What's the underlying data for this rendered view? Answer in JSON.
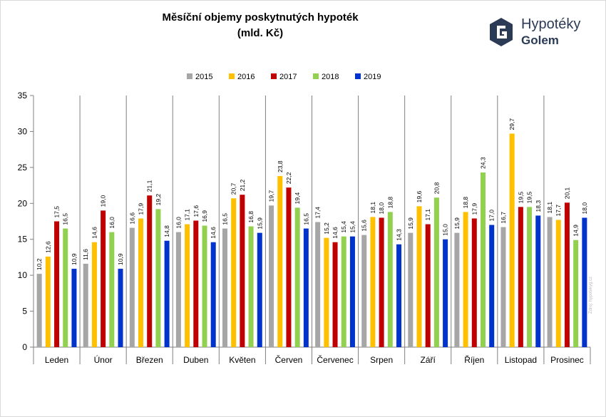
{
  "title_line1": "Měsíční objemy poskytnutých hypoték",
  "title_line2": "(mld. Kč)",
  "logo": {
    "line1": "Hypotéky",
    "line2": "Golem",
    "icon": "golem-g-logo-icon",
    "color": "#2b3a55"
  },
  "source_note": "Zdroj: hypotekyg.cz",
  "chart_data": {
    "type": "bar",
    "categories": [
      "Leden",
      "Únor",
      "Březen",
      "Duben",
      "Květen",
      "Červen",
      "Červenec",
      "Srpen",
      "Září",
      "Říjen",
      "Listopad",
      "Prosinec"
    ],
    "series": [
      {
        "name": "2015",
        "color": "#a6a6a6",
        "values": [
          10.2,
          11.6,
          16.6,
          16.0,
          16.5,
          19.7,
          17.4,
          15.6,
          15.9,
          15.9,
          16.7,
          18.1
        ]
      },
      {
        "name": "2016",
        "color": "#ffc000",
        "values": [
          12.6,
          14.6,
          17.9,
          17.1,
          20.7,
          23.8,
          15.2,
          18.1,
          19.6,
          18.8,
          29.7,
          17.7
        ]
      },
      {
        "name": "2017",
        "color": "#c00000",
        "values": [
          17.5,
          19.0,
          21.1,
          17.6,
          21.2,
          22.2,
          14.6,
          18.0,
          17.1,
          17.9,
          19.5,
          20.1
        ]
      },
      {
        "name": "2018",
        "color": "#92d050",
        "values": [
          16.5,
          16.0,
          19.2,
          16.9,
          16.8,
          19.4,
          15.4,
          18.8,
          20.8,
          24.3,
          19.5,
          14.9
        ]
      },
      {
        "name": "2019",
        "color": "#0033cc",
        "values": [
          10.9,
          10.9,
          14.8,
          14.6,
          15.9,
          16.5,
          15.4,
          14.3,
          15.0,
          17.0,
          18.3,
          18.0
        ]
      }
    ],
    "ylim": [
      0,
      35
    ],
    "yticks": [
      0,
      5,
      10,
      15,
      20,
      25,
      30,
      35
    ],
    "ytick_labels": [
      "0",
      "5",
      "10",
      "15",
      "20",
      "25",
      "30",
      "35"
    ],
    "data_labels": [
      [
        "10,2",
        "11,6",
        "16,6",
        "16,0",
        "16,5",
        "19,7",
        "17,4",
        "15,6",
        "15,9",
        "15,9",
        "16,7",
        "18,1"
      ],
      [
        "12,6",
        "14,6",
        "17,9",
        "17,1",
        "20,7",
        "23,8",
        "15,2",
        "18,1",
        "19,6",
        "18,8",
        "29,7",
        "17,7"
      ],
      [
        "17,5",
        "19,0",
        "21,1",
        "17,6",
        "21,2",
        "22,2",
        "14,6",
        "18,0",
        "17,1",
        "17,9",
        "19,5",
        "20,1"
      ],
      [
        "16,5",
        "16,0",
        "19,2",
        "16,9",
        "16,8",
        "19,4",
        "15,4",
        "18,8",
        "20,8",
        "24,3",
        "19,5",
        "14,9"
      ],
      [
        "10,9",
        "10,9",
        "14,8",
        "14,6",
        "15,9",
        "16,5",
        "15,4",
        "14,3",
        "15,0",
        "17,0",
        "18,3",
        "18,0"
      ]
    ],
    "grid": false,
    "category_separators": true,
    "legend_position": "top-center"
  }
}
